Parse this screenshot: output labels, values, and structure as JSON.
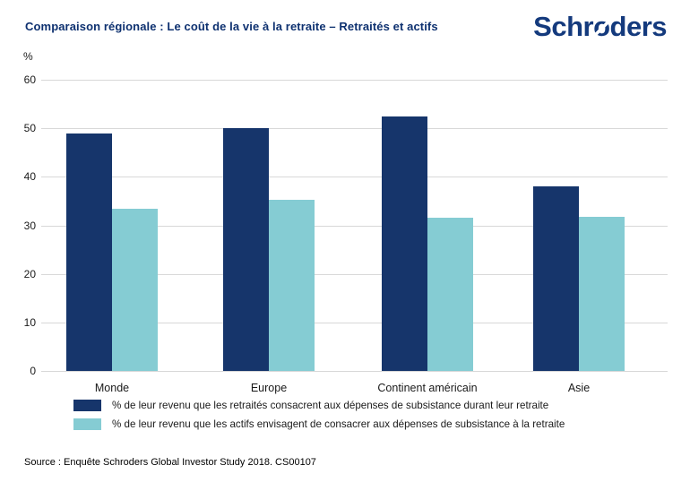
{
  "header": {
    "title": "Comparaison régionale : Le coût de la vie à la retraite – Retraités et actifs",
    "logo": {
      "pre": "Schr",
      "o": "o",
      "post": "ders"
    }
  },
  "colors": {
    "navy": "#16356B",
    "teal": "#85CCD3",
    "title_navy": "#0E3170",
    "logo_navy": "#143A7D",
    "gridline": "#D8D8D8"
  },
  "chart_data": {
    "type": "bar",
    "categories": [
      "Monde",
      "Europe",
      "Continent américain",
      "Asie"
    ],
    "series": [
      {
        "name": "% de leur revenu que les retraités consacrent aux dépenses de subsistance durant leur retraite",
        "color": "#16356B",
        "values": [
          49,
          50,
          52.5,
          38
        ]
      },
      {
        "name": "% de leur revenu que les actifs envisagent de consacrer aux dépenses de subsistance à la retraite",
        "color": "#85CCD3",
        "values": [
          33.5,
          35.2,
          31.5,
          31.7
        ]
      }
    ],
    "ylabel": "%",
    "yticks": [
      0,
      10,
      20,
      30,
      40,
      50,
      60
    ],
    "ylim": [
      0,
      60
    ],
    "grid": true,
    "legend_position": "bottom"
  },
  "footer": {
    "source": "Source : Enquête Schroders Global Investor Study 2018. CS00107"
  }
}
